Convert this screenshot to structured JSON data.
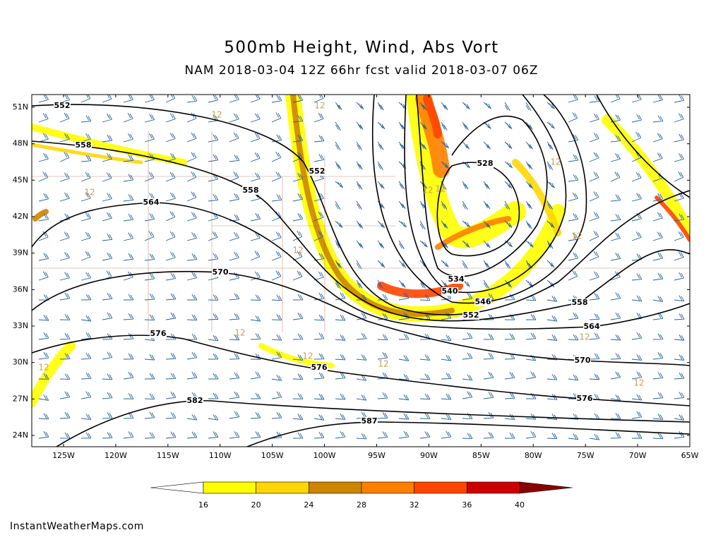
{
  "header": {
    "title": "500mb Height, Wind, Abs Vort",
    "subtitle": "NAM 2018-03-04 12Z 66hr fcst valid 2018-03-07 06Z"
  },
  "map": {
    "lat_ticks": [
      {
        "value": 51,
        "label": "51N"
      },
      {
        "value": 48,
        "label": "48N"
      },
      {
        "value": 45,
        "label": "45N"
      },
      {
        "value": 42,
        "label": "42N"
      },
      {
        "value": 39,
        "label": "39N"
      },
      {
        "value": 36,
        "label": "36N"
      },
      {
        "value": 33,
        "label": "33N"
      },
      {
        "value": 30,
        "label": "30N"
      },
      {
        "value": 27,
        "label": "27N"
      },
      {
        "value": 24,
        "label": "24N"
      }
    ],
    "lon_ticks": [
      {
        "value": -125,
        "label": "125W"
      },
      {
        "value": -120,
        "label": "120W"
      },
      {
        "value": -115,
        "label": "115W"
      },
      {
        "value": -110,
        "label": "110W"
      },
      {
        "value": -105,
        "label": "105W"
      },
      {
        "value": -100,
        "label": "100W"
      },
      {
        "value": -95,
        "label": "95W"
      },
      {
        "value": -90,
        "label": "90W"
      },
      {
        "value": -85,
        "label": "85W"
      },
      {
        "value": -80,
        "label": "80W"
      },
      {
        "value": -75,
        "label": "75W"
      },
      {
        "value": -70,
        "label": "70W"
      },
      {
        "value": -65,
        "label": "65W"
      }
    ],
    "contour_labels": [
      552,
      558,
      552,
      558,
      564,
      570,
      576,
      576,
      582,
      587,
      528,
      534,
      540,
      546,
      552,
      558,
      564,
      570,
      576
    ],
    "vort_labels": [
      12,
      12,
      12,
      12,
      12,
      12,
      12,
      12,
      12,
      12,
      12,
      12,
      12,
      12
    ]
  },
  "legend": {
    "levels": [
      16,
      20,
      24,
      28,
      32,
      36,
      40
    ],
    "colors": [
      "#ffffff",
      "#ffff00",
      "#ffd700",
      "#cd8500",
      "#ff7f00",
      "#ff4500",
      "#cd0000",
      "#8b0000"
    ]
  },
  "footer": "InstantWeatherMaps.com"
}
